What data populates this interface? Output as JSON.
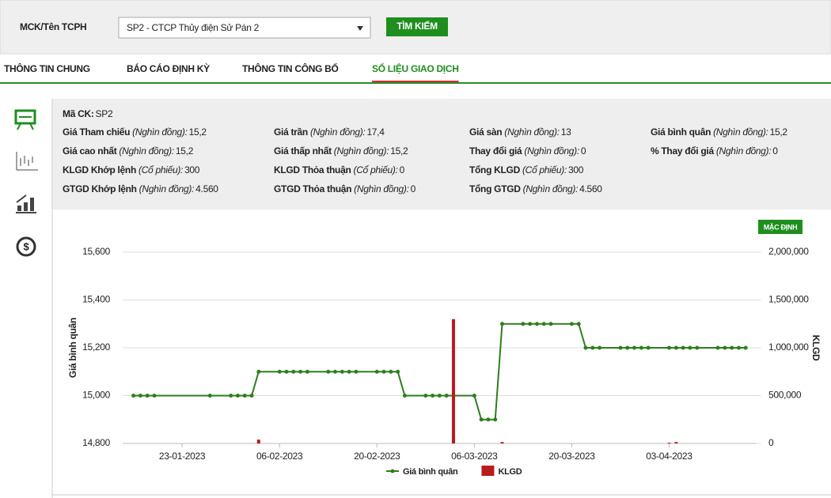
{
  "search": {
    "label": "MCK/Tên TCPH",
    "selected": "SP2 - CTCP Thủy điện Sử Pán 2",
    "button": "TÌM KIẾM"
  },
  "tabs": [
    "THÔNG TIN CHUNG",
    "BÁO CÁO ĐỊNH KỲ",
    "THÔNG TIN CÔNG BỐ",
    "SỐ LIỆU GIAO DỊCH"
  ],
  "active_tab": 3,
  "info": {
    "code_label": "Mã CK:",
    "code": "SP2",
    "rows": [
      [
        {
          "label": "Giá Tham chiếu",
          "unit": "(Nghìn đồng):",
          "value": "15,2"
        },
        {
          "label": "Giá trần",
          "unit": "(Nghìn đồng):",
          "value": "17,4"
        },
        {
          "label": "Giá sàn",
          "unit": "(Nghìn đồng):",
          "value": "13"
        },
        {
          "label": "Giá bình quân",
          "unit": "(Nghìn đồng):",
          "value": "15,2"
        }
      ],
      [
        {
          "label": "Giá cao nhất",
          "unit": "(Nghìn đồng):",
          "value": "15,2"
        },
        {
          "label": "Giá thấp nhất",
          "unit": "(Nghìn đồng):",
          "value": "15,2"
        },
        {
          "label": "Thay đổi giá",
          "unit": "(Nghìn đồng):",
          "value": "0"
        },
        {
          "label": "% Thay đổi giá",
          "unit": "(Nghìn đồng):",
          "value": "0"
        }
      ],
      [
        {
          "label": "KLGD Khớp lệnh",
          "unit": "(Cổ phiếu):",
          "value": "300"
        },
        {
          "label": "KLGD Thỏa thuận",
          "unit": "(Cổ phiếu):",
          "value": "0"
        },
        {
          "label": "Tổng KLGD",
          "unit": "(Cổ phiếu):",
          "value": "300"
        }
      ],
      [
        {
          "label": "GTGD Khớp lệnh",
          "unit": "(Nghìn đồng):",
          "value": "4.560"
        },
        {
          "label": "GTGD Thỏa thuận",
          "unit": "(Nghìn đồng):",
          "value": "0"
        },
        {
          "label": "Tổng GTGD",
          "unit": "(Nghìn đồng):",
          "value": "4.560"
        }
      ]
    ]
  },
  "reset_button": "MẶC ĐỊNH",
  "chart_data": {
    "type": "line",
    "y_label": "Giá bình quân",
    "y2_label": "KLGD",
    "x": [
      "16-01-2023",
      "17-01-2023",
      "18-01-2023",
      "19-01-2023",
      "27-01-2023",
      "30-01-2023",
      "31-01-2023",
      "01-02-2023",
      "02-02-2023",
      "03-02-2023",
      "06-02-2023",
      "07-02-2023",
      "08-02-2023",
      "09-02-2023",
      "10-02-2023",
      "13-02-2023",
      "14-02-2023",
      "15-02-2023",
      "16-02-2023",
      "17-02-2023",
      "20-02-2023",
      "21-02-2023",
      "22-02-2023",
      "23-02-2023",
      "24-02-2023",
      "27-02-2023",
      "28-02-2023",
      "01-03-2023",
      "02-03-2023",
      "03-03-2023",
      "06-03-2023",
      "07-03-2023",
      "08-03-2023",
      "09-03-2023",
      "10-03-2023",
      "13-03-2023",
      "14-03-2023",
      "15-03-2023",
      "16-03-2023",
      "17-03-2023",
      "20-03-2023",
      "21-03-2023",
      "22-03-2023",
      "23-03-2023",
      "24-03-2023",
      "27-03-2023",
      "28-03-2023",
      "29-03-2023",
      "30-03-2023",
      "31-03-2023",
      "03-04-2023",
      "04-04-2023",
      "05-04-2023",
      "06-04-2023",
      "07-04-2023",
      "10-04-2023",
      "11-04-2023",
      "12-04-2023",
      "13-04-2023",
      "14-04-2023"
    ],
    "xlim": [
      "14-01-2023",
      "15-04-2023"
    ],
    "xticks": [
      "23-01-2023",
      "06-02-2023",
      "20-02-2023",
      "06-03-2023",
      "20-03-2023",
      "03-04-2023"
    ],
    "series": [
      {
        "name": "Giá bình quân",
        "type": "line",
        "color": "#2e7d1f",
        "values": [
          15000,
          15000,
          15000,
          15000,
          15000,
          15000,
          15000,
          15000,
          15000,
          15100,
          15100,
          15100,
          15100,
          15100,
          15100,
          15100,
          15100,
          15100,
          15100,
          15100,
          15100,
          15100,
          15100,
          15100,
          15000,
          15000,
          15000,
          15000,
          15000,
          15000,
          15000,
          14900,
          14900,
          14900,
          15300,
          15300,
          15300,
          15300,
          15300,
          15300,
          15300,
          15300,
          15200,
          15200,
          15200,
          15200,
          15200,
          15200,
          15200,
          15200,
          15200,
          15200,
          15200,
          15200,
          15200,
          15200,
          15200,
          15200,
          15200,
          15200
        ]
      },
      {
        "name": "KLGD",
        "type": "bar",
        "axis": "y2",
        "color": "#b71c1c",
        "values": [
          0,
          0,
          0,
          0,
          0,
          0,
          0,
          0,
          0,
          40000,
          0,
          0,
          0,
          0,
          0,
          0,
          0,
          0,
          0,
          0,
          0,
          0,
          0,
          0,
          0,
          0,
          0,
          0,
          0,
          1300000,
          0,
          0,
          0,
          0,
          15000,
          0,
          0,
          0,
          0,
          0,
          0,
          0,
          0,
          0,
          0,
          0,
          0,
          0,
          0,
          0,
          8000,
          15000,
          0,
          0,
          0,
          0,
          0,
          0,
          0,
          0
        ]
      }
    ],
    "ylim": [
      14800,
      15600
    ],
    "yticks": [
      {
        "value": 14800,
        "label": "14,800"
      },
      {
        "value": 15000,
        "label": "15,000"
      },
      {
        "value": 15200,
        "label": "15,200"
      },
      {
        "value": 15400,
        "label": "15,400"
      },
      {
        "value": 15600,
        "label": "15,600"
      }
    ],
    "y2lim": [
      0,
      2000000
    ],
    "y2ticks": [
      0,
      {
        "value": 500000,
        "label": "500,000"
      },
      {
        "value": 1000000,
        "label": "1,000,000"
      },
      {
        "value": 1500000,
        "label": "1,500,000"
      },
      {
        "value": 2000000,
        "label": "2,000,000"
      }
    ],
    "grid": true,
    "legend": "bottom"
  }
}
